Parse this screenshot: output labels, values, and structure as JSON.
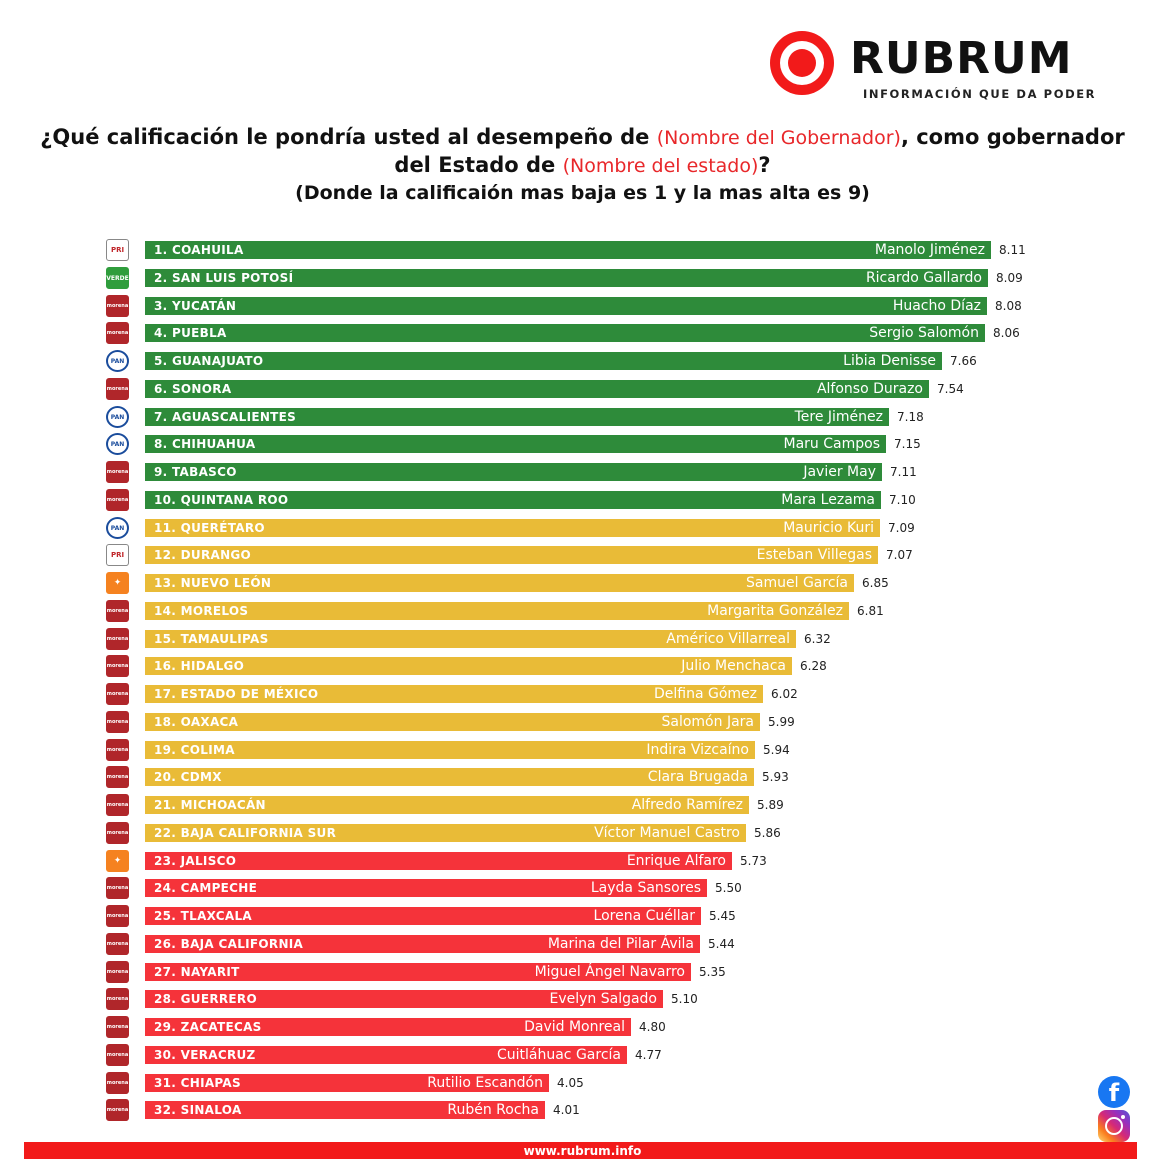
{
  "brand": {
    "name": "RUBRUM",
    "tagline": "INFORMACIÓN QUE DA PODER"
  },
  "question": {
    "part1": "¿Qué calificación le pondría usted al desempeño de ",
    "hl1": "(Nombre del Gobernador)",
    "part2": ", como gobernador del Estado de ",
    "hl2": "(Nombre del estado)",
    "part3": "?",
    "scale_note": "(Donde la calificaión mas baja es 1 y la mas alta es 9)"
  },
  "chart_data": {
    "type": "bar",
    "orientation": "horizontal",
    "colors": {
      "high": "#2e8b3a",
      "mid": "#e9bb37",
      "low": "#f5333a"
    },
    "rows": [
      {
        "state": "1. COAHUILA",
        "governor": "Manolo Jiménez",
        "label": "8.11",
        "value": 8.11,
        "party": "PRI",
        "band": "high"
      },
      {
        "state": "2. SAN LUIS POTOSÍ",
        "governor": "Ricardo Gallardo",
        "label": "8.09",
        "value": 8.09,
        "party": "VERDE",
        "band": "high"
      },
      {
        "state": "3. YUCATÁN",
        "governor": "Huacho Díaz",
        "label": "8.08",
        "value": 8.08,
        "party": "morena",
        "band": "high"
      },
      {
        "state": "4. PUEBLA",
        "governor": "Sergio Salomón",
        "label": "8.06",
        "value": 8.06,
        "party": "morena",
        "band": "high"
      },
      {
        "state": "5. GUANAJUATO",
        "governor": "Libia Denisse",
        "label": "7.66",
        "value": 7.66,
        "party": "PAN",
        "band": "high"
      },
      {
        "state": "6. SONORA",
        "governor": "Alfonso Durazo",
        "label": "7.54",
        "value": 7.54,
        "party": "morena",
        "band": "high"
      },
      {
        "state": "7. AGUASCALIENTES",
        "governor": "Tere Jiménez",
        "label": "7.18",
        "value": 7.18,
        "party": "PAN",
        "band": "high"
      },
      {
        "state": "8. CHIHUAHUA",
        "governor": "Maru Campos",
        "label": "7.15",
        "value": 7.15,
        "party": "PAN",
        "band": "high"
      },
      {
        "state": "9. TABASCO",
        "governor": "Javier May",
        "label": "7.11",
        "value": 7.11,
        "party": "morena",
        "band": "high"
      },
      {
        "state": "10. QUINTANA ROO",
        "governor": "Mara Lezama",
        "label": "7.10",
        "value": 7.1,
        "party": "morena",
        "band": "high"
      },
      {
        "state": "11. QUERÉTARO",
        "governor": "Mauricio Kuri",
        "label": "7.09",
        "value": 7.09,
        "party": "PAN",
        "band": "mid"
      },
      {
        "state": "12. DURANGO",
        "governor": "Esteban Villegas",
        "label": "7.07",
        "value": 7.07,
        "party": "PRI",
        "band": "mid"
      },
      {
        "state": "13. NUEVO LEÓN",
        "governor": "Samuel García",
        "label": "6.85",
        "value": 6.85,
        "party": "MC",
        "band": "mid"
      },
      {
        "state": "14. MORELOS",
        "governor": "Margarita González",
        "label": "6.81",
        "value": 6.81,
        "party": "morena",
        "band": "mid"
      },
      {
        "state": "15. TAMAULIPAS",
        "governor": "Américo Villarreal",
        "label": "6.32",
        "value": 6.32,
        "party": "morena",
        "band": "mid"
      },
      {
        "state": "16. HIDALGO",
        "governor": "Julio Menchaca",
        "label": "6.28",
        "value": 6.28,
        "party": "morena",
        "band": "mid"
      },
      {
        "state": "17. ESTADO DE MÉXICO",
        "governor": "Delfina Gómez",
        "label": "6.02",
        "value": 6.02,
        "party": "morena",
        "band": "mid"
      },
      {
        "state": "18. OAXACA",
        "governor": "Salomón Jara",
        "label": "5.99",
        "value": 5.99,
        "party": "morena",
        "band": "mid"
      },
      {
        "state": "19. COLIMA",
        "governor": "Indira Vizcaíno",
        "label": "5.94",
        "value": 5.94,
        "party": "morena",
        "band": "mid"
      },
      {
        "state": "20. CDMX",
        "governor": "Clara Brugada",
        "label": "5.93",
        "value": 5.93,
        "party": "morena",
        "band": "mid"
      },
      {
        "state": "21. MICHOACÁN",
        "governor": "Alfredo Ramírez",
        "label": "5.89",
        "value": 5.89,
        "party": "morena",
        "band": "mid"
      },
      {
        "state": "22. BAJA CALIFORNIA SUR",
        "governor": "Víctor Manuel Castro",
        "label": "5.86",
        "value": 5.86,
        "party": "morena",
        "band": "mid"
      },
      {
        "state": "23. JALISCO",
        "governor": "Enrique Alfaro",
        "label": "5.73",
        "value": 5.73,
        "party": "MC",
        "band": "low"
      },
      {
        "state": "24. CAMPECHE",
        "governor": "Layda Sansores",
        "label": "5.50",
        "value": 5.5,
        "party": "morena",
        "band": "low"
      },
      {
        "state": "25. TLAXCALA",
        "governor": "Lorena Cuéllar",
        "label": "5.45",
        "value": 5.45,
        "party": "morena",
        "band": "low"
      },
      {
        "state": "26. BAJA CALIFORNIA",
        "governor": "Marina del Pilar Ávila",
        "label": "5.44",
        "value": 5.44,
        "party": "morena",
        "band": "low"
      },
      {
        "state": "27. NAYARIT",
        "governor": "Miguel Ángel Navarro",
        "label": "5.35",
        "value": 5.35,
        "party": "morena",
        "band": "low"
      },
      {
        "state": "28. GUERRERO",
        "governor": "Evelyn Salgado",
        "label": "5.10",
        "value": 5.1,
        "party": "morena",
        "band": "low"
      },
      {
        "state": "29. ZACATECAS",
        "governor": "David Monreal",
        "label": "4.80",
        "value": 4.8,
        "party": "morena",
        "band": "low"
      },
      {
        "state": "30. VERACRUZ",
        "governor": "Cuitláhuac García",
        "label": "4.77",
        "value": 4.77,
        "party": "morena",
        "band": "low"
      },
      {
        "state": "31. CHIAPAS",
        "governor": "Rutilio Escandón",
        "label": "4.05",
        "value": 4.05,
        "party": "morena",
        "band": "low"
      },
      {
        "state": "32. SINALOA",
        "governor": "Rubén Rocha",
        "label": "4.01",
        "value": 4.01,
        "party": "morena",
        "band": "low"
      }
    ]
  },
  "footer": {
    "url": "www.rubrum.info"
  },
  "icons": {
    "facebook": "facebook-icon",
    "instagram": "instagram-icon"
  }
}
